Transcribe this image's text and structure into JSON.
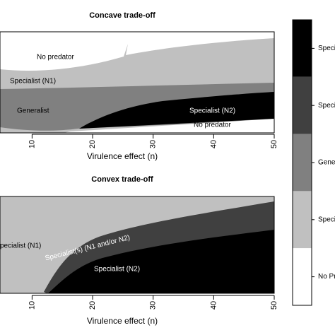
{
  "chart_data": [
    {
      "type": "region",
      "title": "Concave trade-off",
      "xlabel": "Virulence effect (n)",
      "xlim": [
        4.7,
        50
      ],
      "xticks": [
        10,
        20,
        30,
        40,
        50
      ],
      "region_labels": [
        "No predator",
        "Specialist (N1)",
        "Generalist",
        "Specialist (N2)",
        "No predator"
      ]
    },
    {
      "type": "region",
      "title": "Convex trade-off",
      "xlabel": "Virulence effect (n)",
      "xlim": [
        4.7,
        50
      ],
      "xticks": [
        10,
        20,
        30,
        40,
        50
      ],
      "region_labels": [
        "pecialist (N1)",
        "Specialist(s) (N1 and/or N2)",
        "Specialist (N2)"
      ]
    }
  ],
  "legend": {
    "labels": [
      "Speciali",
      "Speci",
      "Gener",
      "Speci",
      "No Pr"
    ],
    "colors": [
      "#000000",
      "#404040",
      "#808080",
      "#c0c0c0",
      "#ffffff"
    ]
  }
}
